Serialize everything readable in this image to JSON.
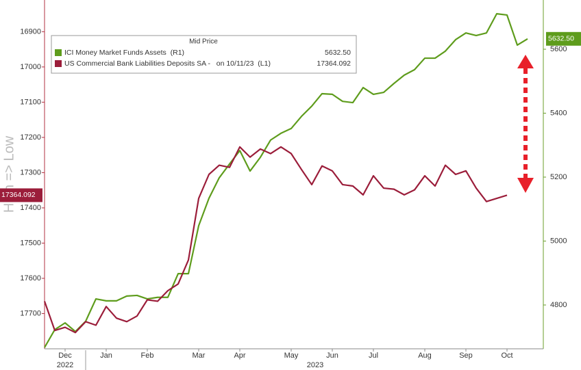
{
  "chart_data": {
    "type": "line",
    "legend_title": "Mid Price",
    "y_axis_label": "High => Low",
    "legend": "upper left",
    "categories": [
      null,
      null,
      "Dec",
      null,
      null,
      null,
      "Jan",
      null,
      null,
      null,
      "Feb",
      null,
      null,
      null,
      null,
      "Mar",
      null,
      null,
      null,
      "Apr",
      null,
      null,
      null,
      null,
      "May",
      null,
      null,
      null,
      "Jun",
      null,
      null,
      null,
      "Jul",
      null,
      null,
      null,
      null,
      "Aug",
      null,
      null,
      null,
      "Sep",
      null,
      null,
      null,
      "Oct",
      null,
      null
    ],
    "years": [
      "2022",
      "2023"
    ],
    "ylim": [
      17800,
      16810
    ],
    "yticks": [
      16900,
      17000,
      17100,
      17200,
      17300,
      17400,
      17500,
      17600,
      17700
    ],
    "y2lim": [
      4663,
      5754
    ],
    "y2ticks": [
      4800,
      5000,
      5200,
      5400,
      5600
    ],
    "series": [
      {
        "name": "ICI Money Market Funds Assets  (R1)",
        "color": "#5e9c1c",
        "axis": "y2",
        "last_label": "5632.50",
        "values": [
          4667,
          4723,
          4744,
          4717,
          4749,
          4819,
          4813,
          4813,
          4828,
          4830,
          4819,
          4824,
          4824,
          4898,
          4898,
          5048,
          5134,
          5198,
          5241,
          5283,
          5219,
          5262,
          5316,
          5337,
          5352,
          5390,
          5422,
          5461,
          5459,
          5437,
          5433,
          5480,
          5459,
          5465,
          5493,
          5519,
          5536,
          5572,
          5572,
          5594,
          5630,
          5651,
          5643,
          5651,
          5711,
          5707,
          5613,
          5632.5
        ]
      },
      {
        "name": "US Commercial Bank Liabilities Deposits SA -   on 10/11/23  (L1)",
        "color": "#9b1d3a",
        "last_label": "17364.092",
        "values": [
          17665,
          17748,
          17739,
          17754,
          17723,
          17733,
          17680,
          17713,
          17723,
          17707,
          17661,
          17665,
          17635,
          17616,
          17548,
          17373,
          17305,
          17279,
          17285,
          17227,
          17256,
          17233,
          17246,
          17227,
          17246,
          17291,
          17334,
          17281,
          17295,
          17334,
          17338,
          17363,
          17309,
          17344,
          17347,
          17363,
          17349,
          17309,
          17338,
          17279,
          17305,
          17295,
          17344,
          17382,
          17373,
          17364.092,
          null,
          null
        ]
      }
    ]
  }
}
